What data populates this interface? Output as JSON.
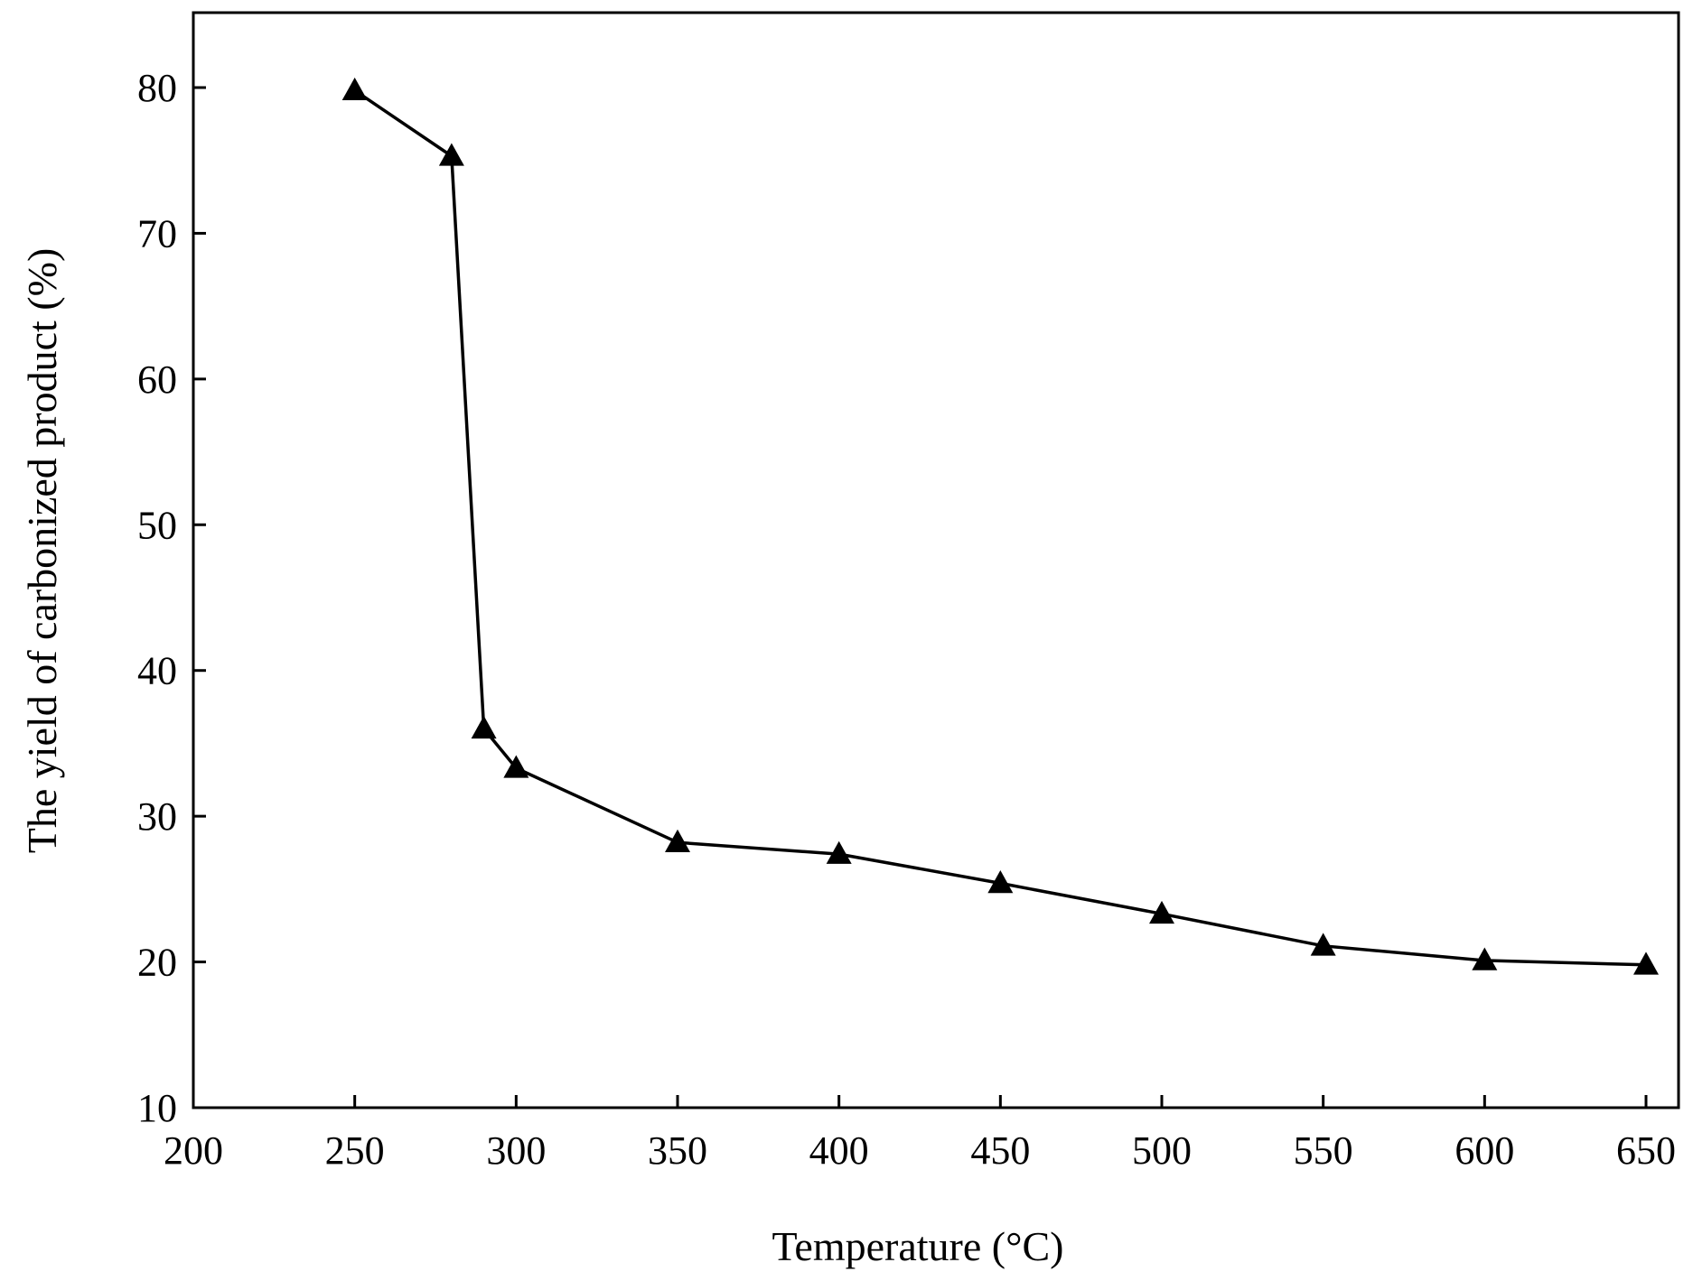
{
  "chart_data": {
    "type": "line",
    "xlabel": "Temperature (°C)",
    "ylabel": "The yield of carbonized product (%)",
    "xlim": [
      200,
      660
    ],
    "ylim": [
      10,
      85
    ],
    "xticks": [
      200,
      250,
      300,
      350,
      400,
      450,
      500,
      550,
      600,
      650
    ],
    "yticks": [
      10,
      20,
      30,
      40,
      50,
      60,
      70,
      80
    ],
    "grid": false,
    "marker": "triangle",
    "series": [
      {
        "x": [
          250,
          280,
          290,
          300,
          350,
          400,
          450,
          500,
          550,
          600,
          650
        ],
        "y": [
          79.8,
          75.3,
          36.0,
          33.3,
          28.2,
          27.4,
          25.4,
          23.3,
          21.1,
          20.1,
          19.8
        ]
      }
    ],
    "colors": {
      "line": "#000000",
      "marker": "#000000"
    }
  }
}
